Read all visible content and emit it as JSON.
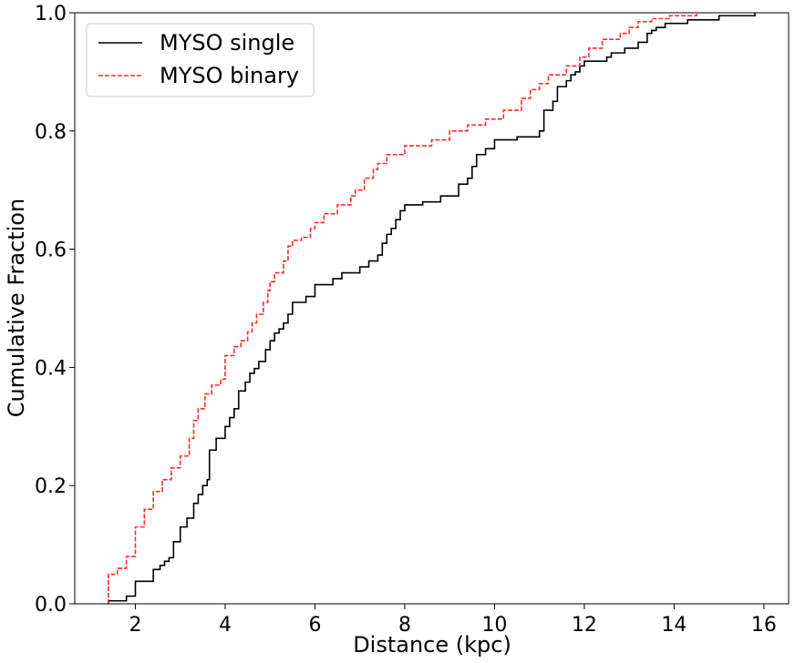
{
  "chart_data": {
    "type": "line",
    "title": "",
    "xlabel": "Distance (kpc)",
    "ylabel": "Cumulative Fraction",
    "xlim": [
      0.65,
      16.55
    ],
    "ylim": [
      0.0,
      1.0
    ],
    "xticks": [
      2,
      4,
      6,
      8,
      10,
      12,
      14,
      16
    ],
    "yticks": [
      0.0,
      0.2,
      0.4,
      0.6,
      0.8,
      1.0
    ],
    "xtick_labels": [
      "2",
      "4",
      "6",
      "8",
      "10",
      "12",
      "14",
      "16"
    ],
    "ytick_labels": [
      "0.0",
      "0.2",
      "0.4",
      "0.6",
      "0.8",
      "1.0"
    ],
    "grid": false,
    "legend_position": "top-left",
    "series": [
      {
        "name": "MYSO single",
        "color": "#000000",
        "style": "solid",
        "step": "post",
        "x": [
          1.4,
          1.8,
          2.0,
          2.4,
          2.55,
          2.65,
          2.75,
          2.85,
          3.0,
          3.15,
          3.3,
          3.4,
          3.5,
          3.6,
          3.65,
          3.8,
          4.0,
          4.1,
          4.2,
          4.3,
          4.45,
          4.55,
          4.65,
          4.75,
          4.9,
          5.0,
          5.1,
          5.2,
          5.3,
          5.4,
          5.5,
          5.8,
          6.0,
          6.4,
          6.6,
          7.0,
          7.2,
          7.4,
          7.5,
          7.6,
          7.7,
          7.8,
          7.9,
          8.0,
          8.4,
          8.8,
          9.2,
          9.4,
          9.5,
          9.6,
          9.8,
          10.0,
          10.5,
          11.0,
          11.1,
          11.3,
          11.4,
          11.6,
          11.7,
          11.8,
          11.9,
          12.0,
          12.5,
          12.6,
          12.9,
          13.2,
          13.4,
          13.5,
          13.6,
          13.8,
          14.3,
          15.0,
          15.8
        ],
        "y": [
          0.005,
          0.013,
          0.038,
          0.058,
          0.065,
          0.072,
          0.078,
          0.105,
          0.13,
          0.145,
          0.17,
          0.185,
          0.2,
          0.21,
          0.26,
          0.28,
          0.3,
          0.315,
          0.33,
          0.36,
          0.375,
          0.39,
          0.398,
          0.41,
          0.43,
          0.445,
          0.458,
          0.465,
          0.475,
          0.49,
          0.51,
          0.52,
          0.54,
          0.55,
          0.56,
          0.57,
          0.58,
          0.59,
          0.61,
          0.625,
          0.635,
          0.65,
          0.665,
          0.675,
          0.68,
          0.69,
          0.71,
          0.72,
          0.74,
          0.76,
          0.77,
          0.785,
          0.79,
          0.8,
          0.835,
          0.85,
          0.875,
          0.885,
          0.895,
          0.9,
          0.91,
          0.918,
          0.925,
          0.932,
          0.94,
          0.95,
          0.965,
          0.97,
          0.975,
          0.982,
          0.988,
          0.995,
          1.0
        ]
      },
      {
        "name": "MYSO binary",
        "color": "#ff2b2b",
        "style": "dashed",
        "step": "post",
        "x": [
          1.4,
          1.6,
          1.8,
          2.0,
          2.2,
          2.4,
          2.6,
          2.8,
          3.0,
          3.2,
          3.3,
          3.4,
          3.55,
          3.7,
          3.9,
          4.0,
          4.2,
          4.35,
          4.5,
          4.6,
          4.7,
          4.85,
          4.95,
          5.0,
          5.1,
          5.3,
          5.4,
          5.5,
          5.7,
          5.9,
          6.0,
          6.2,
          6.5,
          6.8,
          6.9,
          7.1,
          7.3,
          7.4,
          7.6,
          8.0,
          8.6,
          9.0,
          9.4,
          9.8,
          10.2,
          10.6,
          10.8,
          11.0,
          11.2,
          11.6,
          11.9,
          12.1,
          12.4,
          12.8,
          13.0,
          13.2,
          13.5,
          13.9,
          14.5
        ],
        "y": [
          0.05,
          0.06,
          0.08,
          0.13,
          0.16,
          0.19,
          0.21,
          0.23,
          0.25,
          0.28,
          0.31,
          0.33,
          0.355,
          0.37,
          0.38,
          0.42,
          0.435,
          0.445,
          0.46,
          0.475,
          0.49,
          0.51,
          0.53,
          0.545,
          0.56,
          0.58,
          0.605,
          0.615,
          0.62,
          0.635,
          0.645,
          0.66,
          0.675,
          0.69,
          0.7,
          0.72,
          0.735,
          0.745,
          0.76,
          0.775,
          0.785,
          0.8,
          0.81,
          0.82,
          0.835,
          0.855,
          0.87,
          0.88,
          0.895,
          0.91,
          0.925,
          0.94,
          0.955,
          0.965,
          0.975,
          0.985,
          0.99,
          0.995,
          1.0
        ]
      }
    ]
  }
}
